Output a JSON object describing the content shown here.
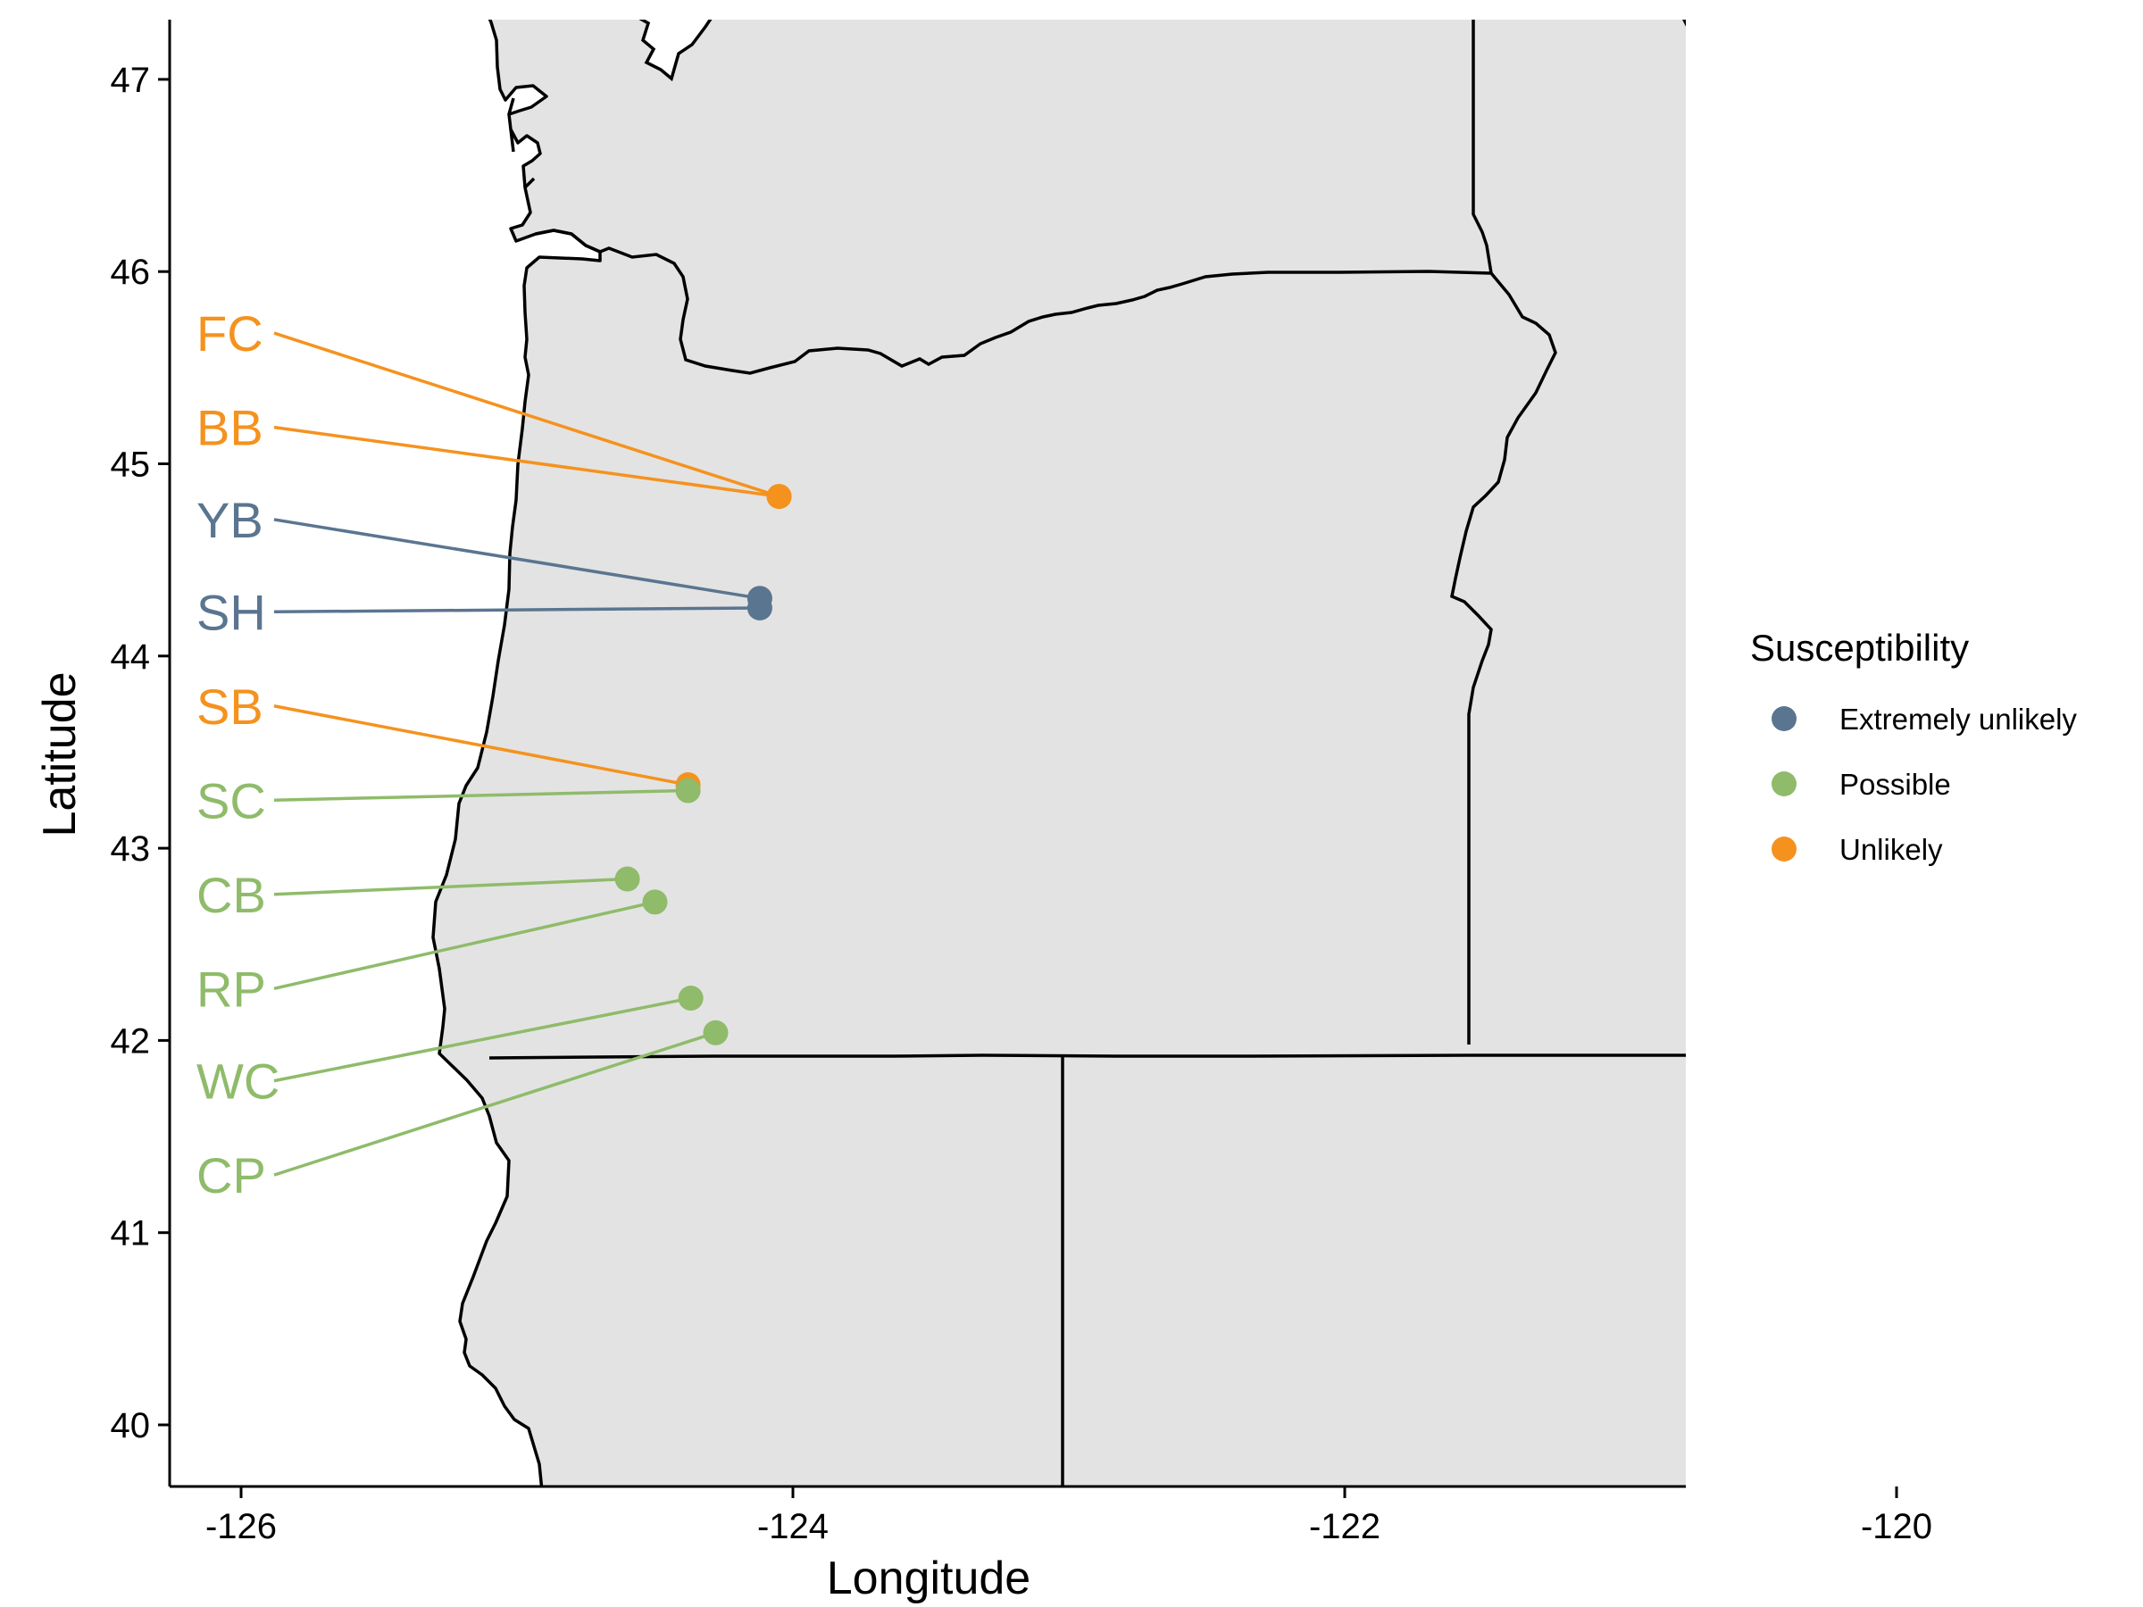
{
  "chart_data": {
    "type": "scatter",
    "title": "",
    "xlabel": "Longitude",
    "ylabel": "Latitude",
    "xlim": [
      -126.5,
      -115.5
    ],
    "ylim": [
      39.68,
      47.38
    ],
    "x_ticks": [
      -126,
      -124,
      -122,
      -120,
      -118,
      -116
    ],
    "y_ticks": [
      40,
      41,
      42,
      43,
      44,
      45,
      46,
      47
    ],
    "grid": false,
    "legend": {
      "title": "Susceptibility",
      "placement": "right",
      "entries": [
        {
          "label": "Extremely unlikely",
          "color": "#5a7590"
        },
        {
          "label": "Possible",
          "color": "#8fbb6a"
        },
        {
          "label": "Unlikely",
          "color": "#f5921e"
        }
      ]
    },
    "sites": [
      {
        "code": "FC",
        "lon": -124.05,
        "lat": 44.83,
        "category": "Unlikely",
        "label_lat": 45.68
      },
      {
        "code": "BB",
        "lon": -124.05,
        "lat": 44.83,
        "category": "Unlikely",
        "label_lat": 45.19
      },
      {
        "code": "YB",
        "lon": -124.12,
        "lat": 44.3,
        "category": "Extremely unlikely",
        "label_lat": 44.71
      },
      {
        "code": "SH",
        "lon": -124.12,
        "lat": 44.25,
        "category": "Extremely unlikely",
        "label_lat": 44.23
      },
      {
        "code": "SB",
        "lon": -124.38,
        "lat": 43.33,
        "category": "Unlikely",
        "label_lat": 43.74
      },
      {
        "code": "SC",
        "lon": -124.38,
        "lat": 43.3,
        "category": "Possible",
        "label_lat": 43.25
      },
      {
        "code": "CB",
        "lon": -124.6,
        "lat": 42.84,
        "category": "Possible",
        "label_lat": 42.76
      },
      {
        "code": "RP",
        "lon": -124.5,
        "lat": 42.72,
        "category": "Possible",
        "label_lat": 42.27
      },
      {
        "code": "WC",
        "lon": -124.37,
        "lat": 42.22,
        "category": "Possible",
        "label_lat": 41.79
      },
      {
        "code": "CP",
        "lon": -124.28,
        "lat": 42.04,
        "category": "Possible",
        "label_lat": 41.3
      }
    ]
  },
  "colors": {
    "Extremely unlikely": "#5a7590",
    "Possible": "#8fbb6a",
    "Unlikely": "#f5921e",
    "land": "#e3e3e3"
  }
}
